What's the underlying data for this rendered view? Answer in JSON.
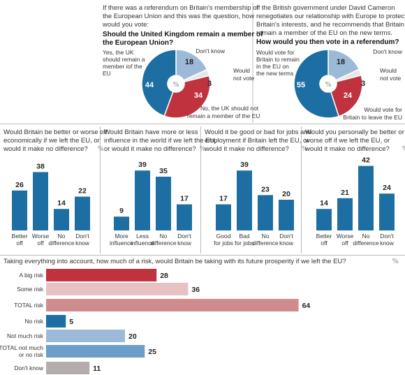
{
  "colors": {
    "blue": "#1d6fa3",
    "light_blue": "#9db9d8",
    "red": "#c1323f",
    "pink": "#e8c2c3",
    "rose": "#d08c8c",
    "grey": "#b5adad",
    "divider": "#bbbbbb"
  },
  "panel1": {
    "question": [
      "If there was a referendum on Britain's membership of",
      "the European Union and this was the question, how",
      "would you vote:"
    ],
    "question_bold": [
      "Should the United Kingdom remain a member of",
      "the European Union?"
    ]
  },
  "panel2": {
    "question": [
      "If the British government under David Cameron",
      "renegotiates our relationship with Europe to protect",
      "Britain's interests, and he recommends that Britain",
      "remain a member of the EU on the new terms."
    ],
    "question_bold": [
      "How would you then vote in a referendum?"
    ]
  },
  "panel3": {
    "question": [
      "Taking everything into account, how much of a risk, would Britain be taking with its future prosperity if we left the EU?"
    ]
  },
  "percent_symbol": "%",
  "chart_data": [
    {
      "type": "pie",
      "id": "pie1",
      "labels": [
        "Don't know",
        "Would not vote",
        "No, the UK should not remain a member of the EU",
        "Yes, the UK should remain a member iof the EU"
      ],
      "values": [
        18,
        3,
        34,
        44
      ],
      "colors": [
        "#9db9d8",
        "#e6e6e6",
        "#c1323f",
        "#1d6fa3"
      ]
    },
    {
      "type": "pie",
      "id": "pie2",
      "labels": [
        "Don't know",
        "Would not vote",
        "Would vote for Britain to leave the EU",
        "Would vote for Britain to remain in the EU on the new terms"
      ],
      "values": [
        18,
        3,
        24,
        55
      ],
      "colors": [
        "#9db9d8",
        "#e6e6e6",
        "#c1323f",
        "#1d6fa3"
      ]
    },
    {
      "type": "bar",
      "id": "bars1",
      "question": [
        "Would Britain be better or worse off",
        "economically if we left the EU, or",
        "would it make no difference?"
      ],
      "categories": [
        [
          "Better",
          "off"
        ],
        [
          "Worse",
          "off"
        ],
        [
          "No",
          "difference"
        ],
        [
          "Don't",
          "know"
        ]
      ],
      "values": [
        26,
        38,
        14,
        22
      ]
    },
    {
      "type": "bar",
      "id": "bars2",
      "question": [
        "Would Britain have more or less",
        "influence in the world if we left the EU,",
        "or would it make no difference?"
      ],
      "categories": [
        [
          "More",
          "influence"
        ],
        [
          "Less",
          "influence"
        ],
        [
          "No",
          "difference"
        ],
        [
          "Don't",
          "know"
        ]
      ],
      "values": [
        9,
        39,
        35,
        17
      ]
    },
    {
      "type": "bar",
      "id": "bars3",
      "question": [
        "Would it be good or bad for jobs and",
        "employment if Britain left the EU, or",
        "would it make no difference?"
      ],
      "categories": [
        [
          "Good",
          "for jobs"
        ],
        [
          "Bad",
          "for jobs"
        ],
        [
          "No",
          "difference"
        ],
        [
          "Don't",
          "know"
        ]
      ],
      "values": [
        17,
        39,
        23,
        20
      ]
    },
    {
      "type": "bar",
      "id": "bars4",
      "question": [
        "Would you personally be better or",
        "worse off if we left the EU, or",
        "would it make no difference?"
      ],
      "categories": [
        [
          "Better",
          "off"
        ],
        [
          "Worse",
          "off"
        ],
        [
          "No",
          "difference"
        ],
        [
          "Don't",
          "know"
        ]
      ],
      "values": [
        14,
        21,
        42,
        24
      ]
    },
    {
      "type": "bar",
      "id": "hbars",
      "orientation": "horizontal",
      "categories": [
        [
          "A big risk"
        ],
        [
          "Some risk"
        ],
        [
          "TOTAL risk"
        ],
        [
          "No risk"
        ],
        [
          "Not much risk"
        ],
        [
          "TOTAL not much",
          "or no risk"
        ],
        [
          "Don't know"
        ]
      ],
      "values": [
        28,
        36,
        64,
        5,
        20,
        25,
        11
      ],
      "colors": [
        "#c1323f",
        "#e8c2c3",
        "#d08c8c",
        "#1d6fa3",
        "#9db9d8",
        "#6d9ec9",
        "#b5adad"
      ]
    }
  ]
}
